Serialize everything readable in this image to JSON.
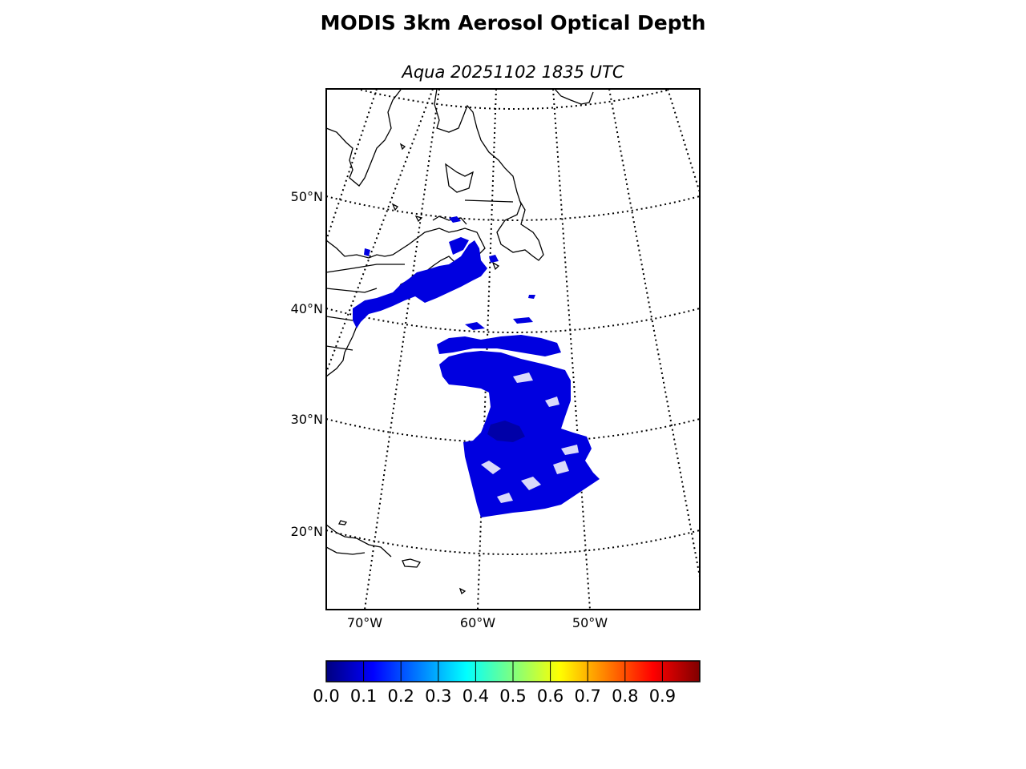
{
  "title": "MODIS 3km Aerosol Optical Depth",
  "subtitle": "Aqua 20251102 1835 UTC",
  "map": {
    "lat_labels": [
      "50°N",
      "40°N",
      "30°N",
      "20°N"
    ],
    "lon_labels": [
      "70°W",
      "60°W",
      "50°W"
    ],
    "coastline_color": "#000000",
    "graticule_style": "dotted"
  },
  "aod_overlay": {
    "dominant_color": "#0000e0",
    "dominant_value_range": [
      0.0,
      0.15
    ]
  },
  "colorbar": {
    "colormap": "jet",
    "range": [
      0.0,
      1.0
    ],
    "ticks": [
      "0.0",
      "0.1",
      "0.2",
      "0.3",
      "0.4",
      "0.5",
      "0.6",
      "0.7",
      "0.8",
      "0.9"
    ],
    "stops": [
      "#00007f",
      "#0000ff",
      "#007fff",
      "#00ffff",
      "#7fff7f",
      "#ffff00",
      "#ff7f00",
      "#ff0000",
      "#7f0000"
    ]
  }
}
